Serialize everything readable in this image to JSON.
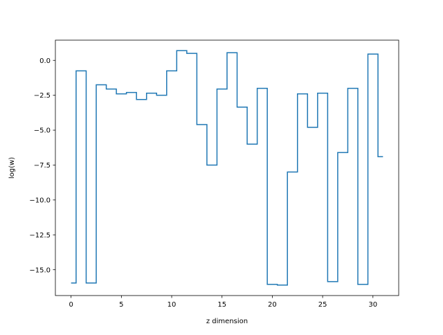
{
  "chart_data": {
    "type": "line",
    "drawstyle": "steps-mid",
    "title": "",
    "xlabel": "z dimension",
    "ylabel": "log(w)",
    "xlim": [
      -1.56,
      32.56
    ],
    "ylim": [
      -16.85,
      1.45
    ],
    "x_ticks": [
      0,
      5,
      10,
      15,
      20,
      25,
      30
    ],
    "x_tick_labels": [
      "0",
      "5",
      "10",
      "15",
      "20",
      "25",
      "30"
    ],
    "y_ticks": [
      0,
      -2.5,
      -5,
      -7.5,
      -10,
      -12.5,
      -15
    ],
    "y_tick_labels": [
      "0.0",
      "−2.5",
      "−5.0",
      "−7.5",
      "−10.0",
      "−12.5",
      "−15.0"
    ],
    "grid": false,
    "series": [
      {
        "color": "#1f77b4",
        "x": [
          0,
          1,
          2,
          3,
          4,
          5,
          6,
          7,
          8,
          9,
          10,
          11,
          12,
          13,
          14,
          15,
          16,
          17,
          18,
          19,
          20,
          21,
          22,
          23,
          24,
          25,
          26,
          27,
          28,
          29,
          30,
          31
        ],
        "y": [
          -15.95,
          -0.75,
          -15.95,
          -1.75,
          -2.05,
          -2.4,
          -2.3,
          -2.8,
          -2.35,
          -2.5,
          -0.75,
          0.7,
          0.5,
          -4.6,
          -7.5,
          -2.05,
          0.55,
          -3.35,
          -6.0,
          -2.0,
          -16.05,
          -16.1,
          -8.0,
          -2.4,
          -4.8,
          -2.35,
          -15.85,
          -6.6,
          -2.0,
          -16.05,
          0.45,
          -6.9
        ]
      }
    ]
  }
}
